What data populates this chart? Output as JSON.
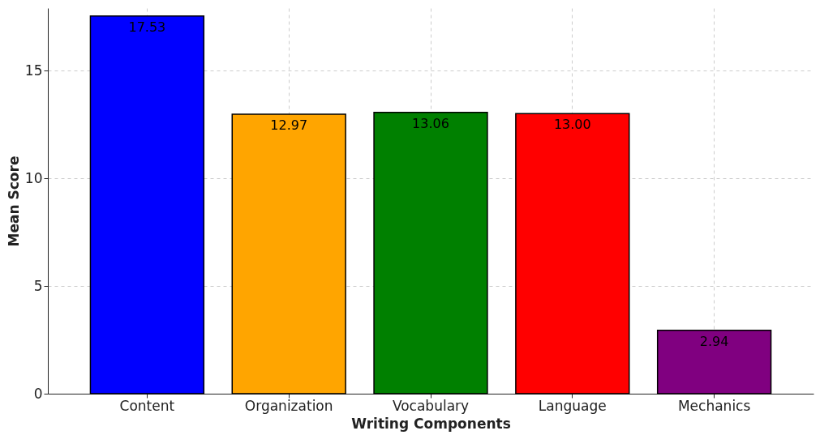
{
  "chart_data": {
    "type": "bar",
    "xlabel": "Writing Components",
    "ylabel": "Mean Score",
    "categories": [
      "Content",
      "Organization",
      "Vocabulary",
      "Language",
      "Mechanics"
    ],
    "values": [
      17.53,
      12.97,
      13.06,
      13.0,
      2.94
    ],
    "value_labels": [
      "17.53",
      "12.97",
      "13.06",
      "13.00",
      "2.94"
    ],
    "colors": [
      "#0000ff",
      "#ffa500",
      "#008000",
      "#ff0000",
      "#800080"
    ],
    "ylim": [
      0,
      17.9
    ],
    "yticks": [
      0,
      5,
      10,
      15
    ],
    "grid": true
  }
}
